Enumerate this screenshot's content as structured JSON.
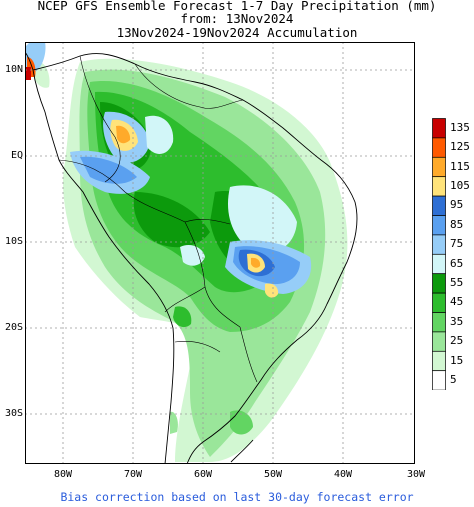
{
  "title": {
    "line1": "NCEP GFS Ensemble Forecast 1-7 Day Precipitation (mm)",
    "line2": "from: 13Nov2024",
    "line3": "13Nov2024-19Nov2024 Accumulation"
  },
  "lat_labels": [
    "10N",
    "EQ",
    "10S",
    "20S",
    "30S"
  ],
  "lon_labels": [
    "80W",
    "70W",
    "60W",
    "50W",
    "40W",
    "30W"
  ],
  "legend": {
    "labels": [
      "135",
      "125",
      "115",
      "105",
      "95",
      "85",
      "75",
      "65",
      "55",
      "45",
      "35",
      "25",
      "15",
      "5"
    ],
    "colors": [
      "#c80000",
      "#ff5a00",
      "#ffaa2a",
      "#ffe37a",
      "#2e6fd4",
      "#5aa0f0",
      "#96cdf8",
      "#d2f6f8",
      "#0c9a0c",
      "#2dbd2d",
      "#62d562",
      "#9ae69a",
      "#d2f7d2",
      "#ffffff"
    ]
  },
  "footer": "Bias correction based on last 30-day forecast error"
}
